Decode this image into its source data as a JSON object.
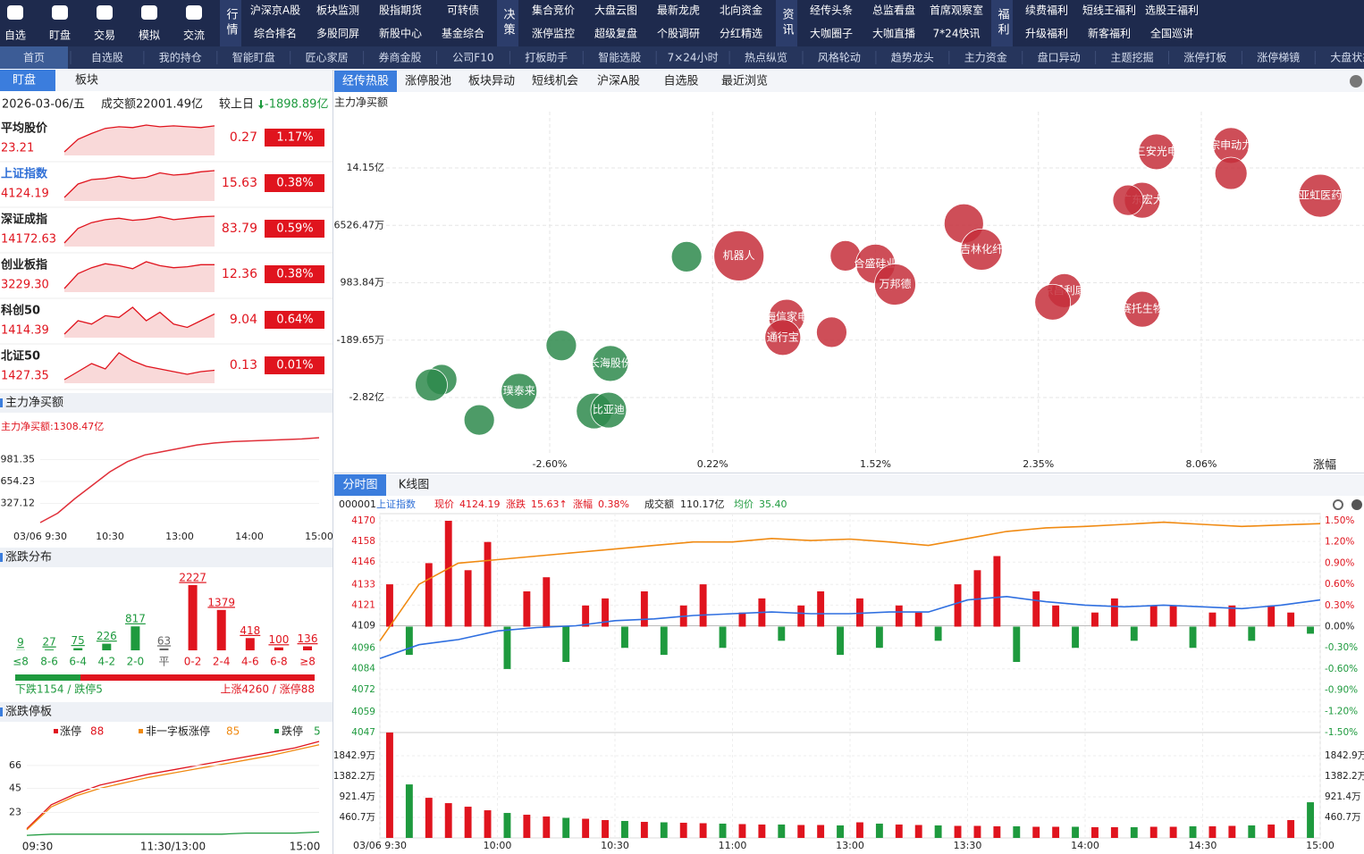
{
  "nav": {
    "icons": [
      "自选",
      "盯盘",
      "交易",
      "模拟",
      "交流"
    ],
    "groups": [
      {
        "title": "行情",
        "items": [
          "沪深京A股",
          "板块监测",
          "股指期货",
          "可转债",
          "综合排名",
          "多股同屏",
          "新股中心",
          "基金综合"
        ]
      },
      {
        "title": "决策",
        "items": [
          "集合竞价",
          "大盘云图",
          "最新龙虎",
          "北向资金",
          "涨停监控",
          "超级复盘",
          "个股调研",
          "分红精选"
        ]
      },
      {
        "title": "资讯",
        "items": [
          "经传头条",
          "总监看盘",
          "首席观察室",
          "大咖圈子",
          "大咖直播",
          "7*24快讯"
        ]
      },
      {
        "title": "福利",
        "items": [
          "续费福利",
          "短线王福利",
          "选股王福利",
          "升级福利",
          "新客福利",
          "全国巡讲"
        ]
      }
    ]
  },
  "tabs": [
    "首页",
    "自选股",
    "我的持仓",
    "智能盯盘",
    "匠心家居",
    "券商金股",
    "公司F10",
    "打板助手",
    "智能选股",
    "7×24小时",
    "热点纵览",
    "风格轮动",
    "趋势龙头",
    "主力资金",
    "盘口异动",
    "主题挖掘",
    "涨停打板",
    "涨停梯镜",
    "大盘状态"
  ],
  "left": {
    "tabs": [
      "盯盘",
      "板块"
    ],
    "date": "2026-03-06/五",
    "turnover": "成交额22001.49亿",
    "compare_label": "较上日",
    "compare_value": "-1898.89亿",
    "indices": [
      {
        "name": "平均股价",
        "price": "23.21",
        "change": "0.27",
        "pct": "1.17%",
        "trend": [
          22.9,
          23.05,
          23.12,
          23.18,
          23.2,
          23.19,
          23.22,
          23.2,
          23.21,
          23.2,
          23.19,
          23.21
        ]
      },
      {
        "name": "上证指数",
        "price": "4124.19",
        "change": "15.63",
        "pct": "0.38%",
        "trend": [
          4100,
          4112,
          4116,
          4117,
          4119,
          4117,
          4118,
          4122,
          4120,
          4121,
          4123,
          4124
        ]
      },
      {
        "name": "深证成指",
        "price": "14172.63",
        "change": "83.79",
        "pct": "0.59%",
        "trend": [
          14080,
          14130,
          14150,
          14160,
          14165,
          14158,
          14162,
          14170,
          14160,
          14165,
          14170,
          14172
        ]
      },
      {
        "name": "创业板指",
        "price": "3229.30",
        "change": "12.36",
        "pct": "0.38%",
        "trend": [
          3205,
          3220,
          3226,
          3230,
          3228,
          3225,
          3232,
          3228,
          3226,
          3227,
          3229,
          3229
        ]
      },
      {
        "name": "科创50",
        "price": "1414.39",
        "change": "9.04",
        "pct": "0.64%",
        "trend": [
          1402,
          1410,
          1408,
          1413,
          1412,
          1418,
          1410,
          1415,
          1408,
          1406,
          1410,
          1414
        ]
      },
      {
        "name": "北证50",
        "price": "1427.35",
        "change": "0.13",
        "pct": "0.01%",
        "trend": [
          1420,
          1426,
          1432,
          1428,
          1440,
          1434,
          1430,
          1428,
          1426,
          1424,
          1426,
          1427
        ]
      }
    ],
    "netbuy": {
      "title": "主力净买额",
      "label": "主力净买额:1308.47亿",
      "color": "#e0303a",
      "ylim": [
        0,
        1642
      ],
      "yticks": [
        327.12,
        654.23,
        981.35
      ],
      "xticks": [
        {
          "value": 0,
          "label": "03/06 9:30"
        },
        {
          "value": 60,
          "label": "10:30"
        },
        {
          "value": 120,
          "label": "13:00"
        },
        {
          "value": 180,
          "label": "14:00"
        },
        {
          "value": 240,
          "label": "15:00"
        }
      ],
      "values": [
        40,
        180,
        400,
        600,
        800,
        950,
        1050,
        1100,
        1150,
        1200,
        1230,
        1250,
        1260,
        1270,
        1280,
        1290,
        1308
      ]
    },
    "dist": {
      "title": "涨跌分布",
      "categories": [
        "≤8",
        "8-6",
        "6-4",
        "4-2",
        "2-0",
        "平",
        "0-2",
        "2-4",
        "4-6",
        "6-8",
        "≥8"
      ],
      "values": [
        9,
        27,
        75,
        226,
        817,
        63,
        2227,
        1379,
        418,
        100,
        136
      ],
      "colors": [
        "#1e9a3e",
        "#1e9a3e",
        "#1e9a3e",
        "#1e9a3e",
        "#1e9a3e",
        "#666666",
        "#e0141e",
        "#e0141e",
        "#e0141e",
        "#e0141e",
        "#e0141e"
      ],
      "down": "下跌1154 / 跌停5",
      "up": "上涨4260 / 涨停88"
    },
    "limit": {
      "title": "涨跌停板",
      "ylim": [
        0,
        88
      ],
      "yticks": [
        23,
        45,
        66
      ],
      "xticks": [
        {
          "value": 0,
          "label": "09:30"
        },
        {
          "value": 120,
          "label": "11:30/13:00"
        },
        {
          "value": 240,
          "label": "15:00"
        }
      ],
      "series": [
        {
          "name": "涨停",
          "color": "#e0141e",
          "values": [
            8,
            30,
            40,
            48,
            53,
            58,
            62,
            66,
            70,
            74,
            78,
            82,
            88
          ]
        },
        {
          "name": "非一字板涨停",
          "color": "#f08a12",
          "values": [
            7,
            28,
            38,
            45,
            50,
            55,
            59,
            63,
            67,
            71,
            75,
            80,
            85
          ]
        },
        {
          "name": "跌停",
          "color": "#1e9a3e",
          "values": [
            2,
            3,
            3,
            3,
            3,
            3,
            3,
            3,
            3,
            4,
            4,
            4,
            5
          ]
        }
      ]
    }
  },
  "bubble": {
    "tabs": [
      "经传热股",
      "涨停股池",
      "板块异动",
      "短线机会",
      "沪深A股",
      "自选股",
      "最近浏览"
    ],
    "ylabel": "主力净买额",
    "xlabel": "涨幅",
    "xticks": [
      {
        "value": -2.6,
        "label": "-2.60%"
      },
      {
        "value": 0.22,
        "label": "0.22%"
      },
      {
        "value": 1.52,
        "label": "1.52%"
      },
      {
        "value": 2.35,
        "label": "2.35%"
      },
      {
        "value": 8.06,
        "label": "8.06%"
      }
    ],
    "yticks": [
      {
        "value": 141500,
        "label": "14.15亿"
      },
      {
        "value": 6526.47,
        "label": "6526.47万"
      },
      {
        "value": 983.84,
        "label": "983.84万"
      },
      {
        "value": -189.65,
        "label": "-189.65万"
      },
      {
        "value": -28200,
        "label": "-2.82亿"
      }
    ],
    "x": [
      6.49,
      9.1,
      9.1,
      5.99,
      5.49,
      12.23,
      1.97,
      2.06,
      0.43,
      1.28,
      1.52,
      1.62,
      3.26,
      2.85,
      5.99,
      0.81,
      0.78,
      1.17,
      -0.23,
      -2.4,
      -1.55,
      -4.47,
      -4.65,
      -3.13,
      -3.82,
      -1.83,
      -1.58
    ],
    "y": [
      179464,
      194227,
      128848,
      65578,
      65578,
      76123,
      10744,
      4189,
      3583,
      3583,
      2803,
      947.5,
      821.2,
      586.5,
      442.1,
      279.6,
      -135.5,
      -27.2,
      3495.8,
      -2815.9,
      -11569.9,
      -19448.5,
      -22074.7,
      -25138.6,
      -39144.9,
      -34768,
      -34330.3
    ],
    "size": [
      20,
      20,
      18,
      20,
      17,
      24,
      22,
      23,
      28,
      17,
      22,
      23,
      19,
      20,
      20,
      20,
      20,
      17,
      17,
      17,
      20,
      17,
      18,
      20,
      17,
      20,
      20
    ],
    "labels": [
      "三安光电",
      "宗申动力",
      null,
      "广东宏大",
      null,
      "亚虹医药",
      null,
      "吉林化纤",
      "机器人",
      null,
      "合盛硅业",
      "万邦德",
      "京昌利康",
      null,
      "赛托生物",
      "海信家电",
      "通行宝",
      null,
      null,
      null,
      "长海股份",
      null,
      null,
      "璞泰来",
      null,
      null,
      "比亚迪"
    ],
    "colors": [
      "#c62f3b",
      "#c62f3b",
      "#c62f3b",
      "#c62f3b",
      "#c62f3b",
      "#c62f3b",
      "#c62f3b",
      "#c62f3b",
      "#c62f3b",
      "#c62f3b",
      "#c62f3b",
      "#c62f3b",
      "#c62f3b",
      "#c62f3b",
      "#c62f3b",
      "#c62f3b",
      "#c62f3b",
      "#c62f3b",
      "#2e8a4c",
      "#2e8a4c",
      "#2e8a4c",
      "#2e8a4c",
      "#2e8a4c",
      "#2e8a4c",
      "#2e8a4c",
      "#2e8a4c",
      "#2e8a4c"
    ]
  },
  "intraday": {
    "tabs": [
      "分时图",
      "K线图"
    ],
    "code": "000001",
    "name": "上证指数",
    "info": [
      {
        "label": "现价",
        "value": "4124.19"
      },
      {
        "label": "涨跌",
        "value": "15.63↑"
      },
      {
        "label": "涨幅",
        "value": "0.38%"
      },
      {
        "label": "成交额",
        "value": "110.17亿"
      },
      {
        "label": "均价",
        "value": "35.40"
      }
    ],
    "ylim": [
      4047,
      4170
    ],
    "yticks": [
      4170,
      4158,
      4146,
      4133,
      4121,
      4109,
      4096,
      4084,
      4072,
      4059,
      4047
    ],
    "y2lim": [
      -1.5,
      1.5
    ],
    "y2ticks": [
      {
        "value": 1.5,
        "label": "1.50%"
      },
      {
        "value": 1.2,
        "label": "1.20%"
      },
      {
        "value": 0.9,
        "label": "0.90%"
      },
      {
        "value": 0.6,
        "label": "0.60%"
      },
      {
        "value": 0.3,
        "label": "0.30%"
      },
      {
        "value": 0,
        "label": "0.00%"
      },
      {
        "value": -0.3,
        "label": "-0.30%"
      },
      {
        "value": -0.6,
        "label": "-0.60%"
      },
      {
        "value": -0.9,
        "label": "-0.90%"
      },
      {
        "value": -1.2,
        "label": "-1.20%"
      },
      {
        "value": -1.5,
        "label": "-1.50%"
      }
    ],
    "vlim": [
      0,
      2364
    ],
    "vticks": [
      {
        "value": 460.7,
        "label": "460.7万"
      },
      {
        "value": 921.4,
        "label": "921.4万"
      },
      {
        "value": 1382.2,
        "label": "1382.2万"
      },
      {
        "value": 1842.9,
        "label": "1842.9万"
      }
    ],
    "xticks": [
      {
        "value": 0,
        "label": "03/06 9:30"
      },
      {
        "value": 30,
        "label": "10:00"
      },
      {
        "value": 60,
        "label": "10:30"
      },
      {
        "value": 90,
        "label": "11:00"
      },
      {
        "value": 120,
        "label": "13:00"
      },
      {
        "value": 150,
        "label": "13:30"
      },
      {
        "value": 180,
        "label": "14:00"
      },
      {
        "value": 210,
        "label": "14:30"
      },
      {
        "value": 240,
        "label": "15:00"
      }
    ],
    "price": {
      "color": "#2f6fe0",
      "values": [
        4090,
        4098,
        4101,
        4106,
        4108,
        4109,
        4112,
        4113,
        4115,
        4116,
        4117,
        4116,
        4116,
        4117,
        4117,
        4124,
        4126,
        4123,
        4121,
        4120,
        4121,
        4120,
        4119,
        4121,
        4124
      ]
    },
    "lead": {
      "color": "#f08a12",
      "axis": "y2",
      "values": [
        -0.2,
        0.6,
        0.9,
        0.95,
        1.0,
        1.05,
        1.1,
        1.15,
        1.2,
        1.2,
        1.25,
        1.22,
        1.24,
        1.2,
        1.15,
        1.25,
        1.35,
        1.4,
        1.42,
        1.45,
        1.48,
        1.45,
        1.42,
        1.44,
        1.46
      ]
    },
    "bars": [
      0.6,
      -0.4,
      0.9,
      1.5,
      0.8,
      1.2,
      -0.6,
      0.5,
      0.7,
      -0.5,
      0.3,
      0.4,
      -0.3,
      0.5,
      -0.4,
      0.3,
      0.6,
      -0.3,
      0.2,
      0.4,
      -0.2,
      0.3,
      0.5,
      -0.4,
      0.4,
      -0.3,
      0.3,
      0.2,
      -0.2,
      0.6,
      0.8,
      1.0,
      -0.5,
      0.5,
      0.3,
      -0.3,
      0.2,
      0.4,
      -0.2,
      0.3,
      0.3,
      -0.3,
      0.2,
      0.3,
      -0.2,
      0.3,
      0.2,
      -0.1
    ],
    "volume": [
      2363,
      1200,
      900,
      780,
      700,
      620,
      560,
      520,
      480,
      450,
      430,
      400,
      380,
      360,
      350,
      340,
      330,
      320,
      310,
      300,
      300,
      290,
      290,
      280,
      350,
      320,
      300,
      290,
      280,
      270,
      270,
      260,
      260,
      250,
      250,
      250,
      240,
      240,
      240,
      250,
      250,
      260,
      260,
      270,
      280,
      300,
      400,
      800
    ]
  }
}
